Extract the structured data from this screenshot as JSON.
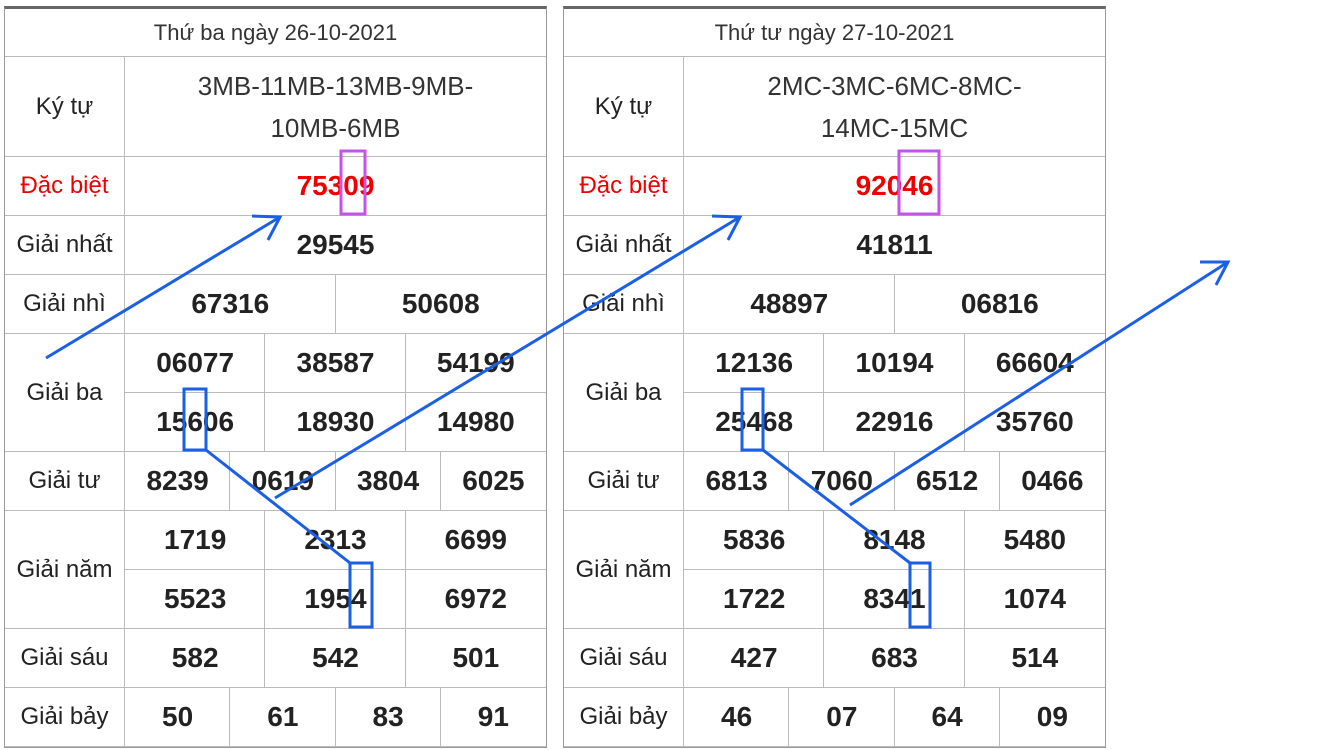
{
  "tables": [
    {
      "title": "Thứ ba ngày 26-10-2021",
      "rows": [
        {
          "label": "Ký tự",
          "values": [
            "3MB-11MB-13MB-9MB-10MB-6MB"
          ]
        },
        {
          "label": "Đặc biệt",
          "values": [
            "75309"
          ]
        },
        {
          "label": "Giải nhất",
          "values": [
            "29545"
          ]
        },
        {
          "label": "Giải nhì",
          "values": [
            "67316",
            "50608"
          ]
        },
        {
          "label": "Giải ba",
          "values": [
            "06077",
            "38587",
            "54199",
            "15606",
            "18930",
            "14980"
          ]
        },
        {
          "label": "Giải tư",
          "values": [
            "8239",
            "0619",
            "3804",
            "6025"
          ]
        },
        {
          "label": "Giải năm",
          "values": [
            "1719",
            "2313",
            "6699",
            "5523",
            "1954",
            "6972"
          ]
        },
        {
          "label": "Giải sáu",
          "values": [
            "582",
            "542",
            "501"
          ]
        },
        {
          "label": "Giải bảy",
          "values": [
            "50",
            "61",
            "83",
            "91"
          ]
        }
      ]
    },
    {
      "title": "Thứ tư ngày 27-10-2021",
      "rows": [
        {
          "label": "Ký tự",
          "values": [
            "2MC-3MC-6MC-8MC-14MC-15MC"
          ]
        },
        {
          "label": "Đặc biệt",
          "values": [
            "92046"
          ]
        },
        {
          "label": "Giải nhất",
          "values": [
            "41811"
          ]
        },
        {
          "label": "Giải nhì",
          "values": [
            "48897",
            "06816"
          ]
        },
        {
          "label": "Giải ba",
          "values": [
            "12136",
            "10194",
            "66604",
            "25468",
            "22916",
            "35760"
          ]
        },
        {
          "label": "Giải tư",
          "values": [
            "6813",
            "7060",
            "6512",
            "0466"
          ]
        },
        {
          "label": "Giải năm",
          "values": [
            "5836",
            "8148",
            "5480",
            "1722",
            "8341",
            "1074"
          ]
        },
        {
          "label": "Giải sáu",
          "values": [
            "427",
            "683",
            "514"
          ]
        },
        {
          "label": "Giải bảy",
          "values": [
            "46",
            "07",
            "64",
            "09"
          ]
        }
      ]
    }
  ]
}
